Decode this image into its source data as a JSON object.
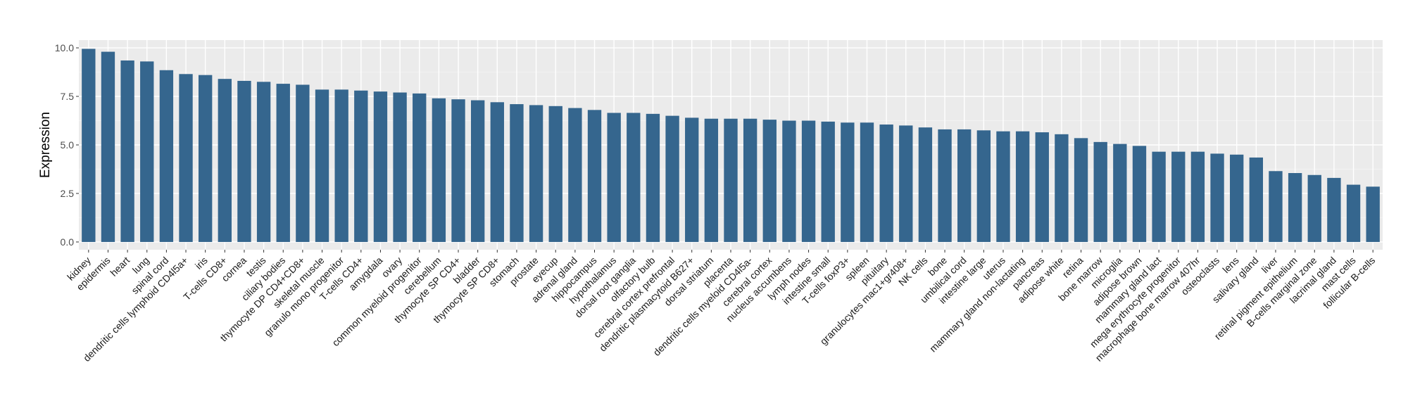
{
  "chart_data": {
    "type": "bar",
    "title": "",
    "xlabel": "",
    "ylabel": "Expression",
    "ylim": [
      -0.4,
      10.4
    ],
    "yticks": [
      "0.0",
      "2.5",
      "5.0",
      "7.5",
      "10.0"
    ],
    "ytick_values": [
      0,
      2.5,
      5,
      7.5,
      10
    ],
    "grid": true,
    "legend": "none",
    "bar_color": "#35668e",
    "panel_background": "#ebebeb",
    "categories": [
      "kidney",
      "epidermis",
      "heart",
      "lung",
      "spinal cord",
      "dendritic cells lymphoid CD4l5a+",
      "iris",
      "T-cells CD8+",
      "cornea",
      "testis",
      "ciliary bodies",
      "thymocyte DP CD4+CD8+",
      "skeletal muscle",
      "granulo mono progenitor",
      "T-cells CD4+",
      "amygdala",
      "ovary",
      "common myeloid progenitor",
      "cerebellum",
      "thymocyte SP CD4+",
      "bladder",
      "thymocyte SP CD8+",
      "stomach",
      "prostate",
      "eyecup",
      "adrenal gland",
      "hippocampus",
      "hypothalamus",
      "dorsal root ganglia",
      "olfactory bulb",
      "cerebral cortex prefrontal",
      "dendritic plasmacytoid B627+",
      "dorsal striatum",
      "placenta",
      "dendritic cells myeloid CD4l5a-",
      "cerebral cortex",
      "nucleus accumbens",
      "lymph nodes",
      "intestine small",
      "T-cells foxP3+",
      "spleen",
      "pituitary",
      "granulocytes mac1+gr408+",
      "NK cells",
      "bone",
      "umbilical cord",
      "intestine large",
      "uterus",
      "mammary gland non-lactating",
      "pancreas",
      "adipose white",
      "retina",
      "bone marrow",
      "microglia",
      "adipose brown",
      "mammary gland  lact",
      "mega erythrocyte progenitor",
      "macrophage bone marrow 407hr",
      "osteoclasts",
      "lens",
      "salivary gland",
      "liver",
      "retinal pigment epithelium",
      "B-cells marginal zone",
      "lacrimal gland",
      "mast cells",
      "follicular B-cells"
    ],
    "values": [
      9.95,
      9.8,
      9.35,
      9.3,
      8.85,
      8.65,
      8.6,
      8.4,
      8.3,
      8.25,
      8.15,
      8.1,
      7.85,
      7.85,
      7.8,
      7.75,
      7.7,
      7.65,
      7.4,
      7.35,
      7.3,
      7.2,
      7.1,
      7.05,
      7.0,
      6.9,
      6.8,
      6.65,
      6.65,
      6.6,
      6.5,
      6.4,
      6.35,
      6.35,
      6.35,
      6.3,
      6.25,
      6.25,
      6.2,
      6.15,
      6.15,
      6.05,
      6.0,
      5.9,
      5.8,
      5.8,
      5.75,
      5.7,
      5.7,
      5.65,
      5.55,
      5.35,
      5.15,
      5.05,
      4.95,
      4.65,
      4.65,
      4.65,
      4.55,
      4.5,
      4.35,
      3.65,
      3.55,
      3.45,
      3.3,
      2.95,
      2.85
    ]
  }
}
